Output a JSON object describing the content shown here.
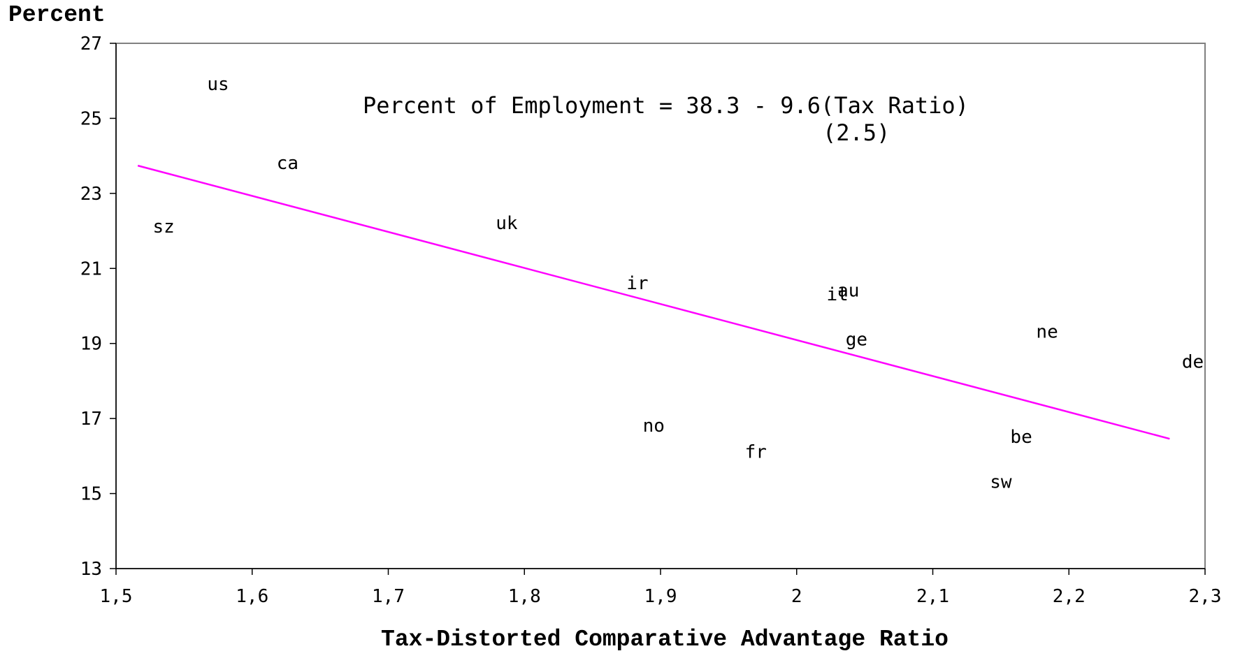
{
  "chart_data": {
    "type": "scatter",
    "title": "",
    "ylabel": "Percent",
    "xlabel": "Tax-Distorted Comparative Advantage Ratio",
    "xlim": [
      1.5,
      2.3
    ],
    "ylim": [
      13,
      27
    ],
    "x_ticks": [
      1.5,
      1.6,
      1.7,
      1.8,
      1.9,
      2.0,
      2.1,
      2.2,
      2.3
    ],
    "x_tick_labels": [
      "1,5",
      "1,6",
      "1,7",
      "1,8",
      "1,9",
      "2",
      "2,1",
      "2,2",
      "2,3"
    ],
    "y_ticks": [
      13,
      15,
      17,
      19,
      21,
      23,
      25,
      27
    ],
    "y_tick_labels": [
      "13",
      "15",
      "17",
      "19",
      "21",
      "23",
      "25",
      "27"
    ],
    "grid": false,
    "points": [
      {
        "label": "us",
        "x": 1.575,
        "y": 25.9
      },
      {
        "label": "ca",
        "x": 1.626,
        "y": 23.8
      },
      {
        "label": "sz",
        "x": 1.535,
        "y": 22.1
      },
      {
        "label": "uk",
        "x": 1.787,
        "y": 22.2
      },
      {
        "label": "ir",
        "x": 1.883,
        "y": 20.6
      },
      {
        "label": "it",
        "x": 2.03,
        "y": 20.3
      },
      {
        "label": "au",
        "x": 2.038,
        "y": 20.4
      },
      {
        "label": "ge",
        "x": 2.044,
        "y": 19.1
      },
      {
        "label": "ne",
        "x": 2.184,
        "y": 19.3
      },
      {
        "label": "de",
        "x": 2.291,
        "y": 18.5
      },
      {
        "label": "no",
        "x": 1.895,
        "y": 16.8
      },
      {
        "label": "fr",
        "x": 1.97,
        "y": 16.1
      },
      {
        "label": "be",
        "x": 2.165,
        "y": 16.5
      },
      {
        "label": "sw",
        "x": 2.15,
        "y": 15.3
      }
    ],
    "trendline": {
      "x": [
        1.516,
        2.274
      ],
      "y": [
        23.74,
        16.46
      ],
      "color": "#ff00ff"
    },
    "annotation": {
      "line1": "Percent of Employment = 38.3 - 9.6(Tax Ratio)",
      "line2": "(2.5)"
    }
  }
}
